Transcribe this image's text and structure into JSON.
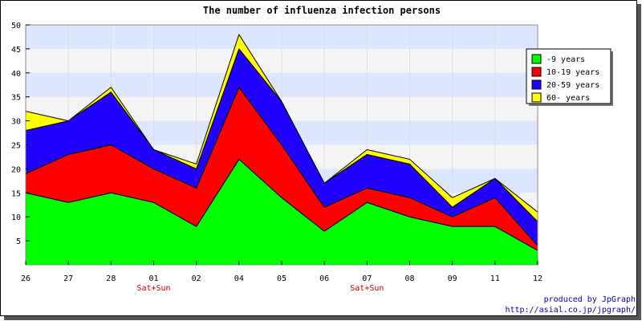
{
  "chart_data": {
    "type": "area",
    "stacked": true,
    "title": "The number of influenza infection persons",
    "categories": [
      "26",
      "27",
      "28",
      "01",
      "02",
      "04",
      "05",
      "06",
      "07",
      "08",
      "09",
      "11",
      "12"
    ],
    "category_sublabels": [
      "",
      "",
      "",
      "Sat+Sun",
      "",
      "",
      "",
      "",
      "Sat+Sun",
      "",
      "",
      "",
      ""
    ],
    "ylim": [
      0,
      50
    ],
    "yticks": [
      5,
      10,
      15,
      20,
      25,
      30,
      35,
      40,
      45,
      50
    ],
    "grid": true,
    "legend_position": "right",
    "series": [
      {
        "name": "-9 years",
        "color": "#00ff00",
        "values": [
          15,
          13,
          15,
          13,
          8,
          22,
          14,
          7,
          13,
          10,
          8,
          8,
          3
        ]
      },
      {
        "name": "10-19 years",
        "color": "#ff0000",
        "values": [
          4,
          10,
          10,
          7,
          8,
          15,
          11,
          5,
          3,
          4,
          2,
          6,
          1
        ]
      },
      {
        "name": "20-59 years",
        "color": "#2200ff",
        "values": [
          9,
          7,
          11,
          4,
          4,
          8,
          9,
          5,
          7,
          7,
          2,
          4,
          5
        ]
      },
      {
        "name": "60- years",
        "color": "#ffff00",
        "values": [
          4,
          0,
          1,
          0,
          1,
          3,
          0,
          0,
          1,
          1,
          2,
          0,
          2
        ]
      }
    ]
  },
  "credits": {
    "line1": "produced by JpGraph",
    "line2": "http://asial.co.jp/jpgraph/"
  }
}
